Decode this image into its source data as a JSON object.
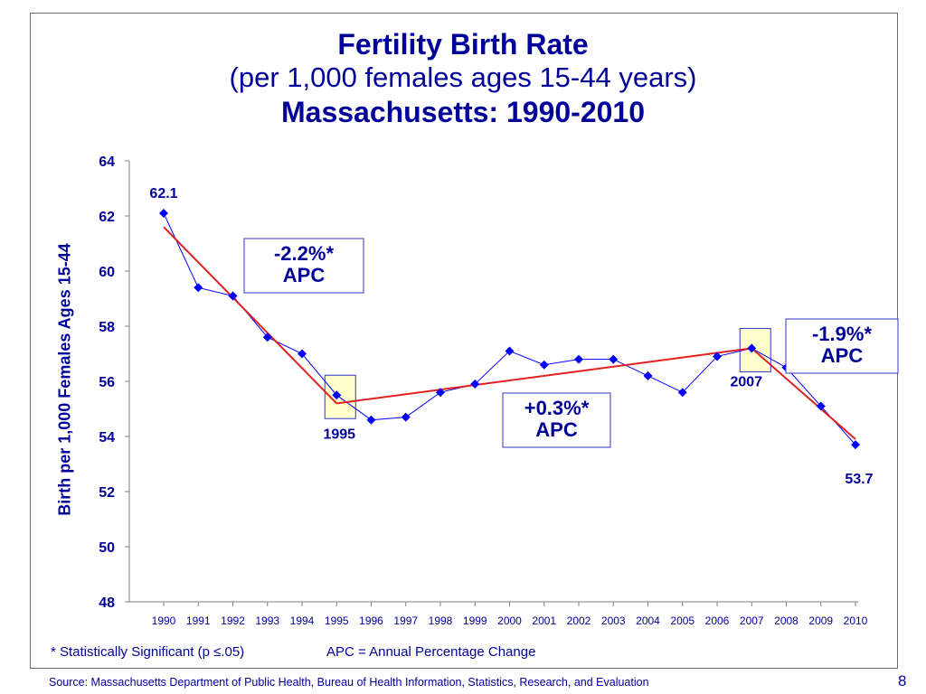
{
  "slide": {
    "footnote": "* Statistically Significant  (p ≤.05)",
    "apc_definition": "APC = Annual Percentage Change",
    "source": "Source:  Massachusetts Department of Public Health, Bureau of Health Information, Statistics, Research, and Evaluation",
    "page_number": "8"
  },
  "chart_data": {
    "type": "line",
    "title": "Fertility Birth Rate",
    "subtitle": "(per 1,000 females ages 15-44 years)",
    "subtitle2": "Massachusetts: 1990-2010",
    "xlabel": "",
    "ylabel": "Birth per 1,000 Females Ages 15-44",
    "ylim": [
      48,
      64
    ],
    "yticks": [
      48,
      50,
      52,
      54,
      56,
      58,
      60,
      62,
      64
    ],
    "grid": false,
    "legend": "none",
    "categories": [
      "1990",
      "1991",
      "1992",
      "1993",
      "1994",
      "1995",
      "1996",
      "1997",
      "1998",
      "1999",
      "2000",
      "2001",
      "2002",
      "2003",
      "2004",
      "2005",
      "2006",
      "2007",
      "2008",
      "2009",
      "2010"
    ],
    "series": [
      {
        "values": [
          62.1,
          59.4,
          59.1,
          57.6,
          57.0,
          55.5,
          54.6,
          54.7,
          55.6,
          55.9,
          57.1,
          56.6,
          56.8,
          56.8,
          56.2,
          55.6,
          56.9,
          57.2,
          56.5,
          55.1,
          53.7
        ],
        "color": "#0000ff",
        "marker": "diamond"
      }
    ],
    "trend_segments": [
      {
        "from": [
          "1990",
          61.6
        ],
        "to": [
          "1995",
          55.2
        ]
      },
      {
        "from": [
          "1995",
          55.2
        ],
        "to": [
          "2007",
          57.2
        ]
      },
      {
        "from": [
          "2007",
          57.2
        ],
        "to": [
          "2010",
          53.9
        ]
      }
    ],
    "trend_color": "#e02020",
    "point_labels": [
      {
        "category": "1990",
        "text": "62.1"
      },
      {
        "category": "2010",
        "text": "53.7"
      },
      {
        "category": "1995",
        "text": "1995"
      },
      {
        "category": "2007",
        "text": "2007"
      }
    ],
    "highlighted_points": [
      "1995",
      "2007"
    ],
    "highlight_color": "#ffffcc",
    "annotations": [
      {
        "line1": "-2.2%*",
        "line2": "APC"
      },
      {
        "line1": "+0.3%*",
        "line2": "APC"
      },
      {
        "line1": "-1.9%*",
        "line2": "APC"
      }
    ]
  }
}
